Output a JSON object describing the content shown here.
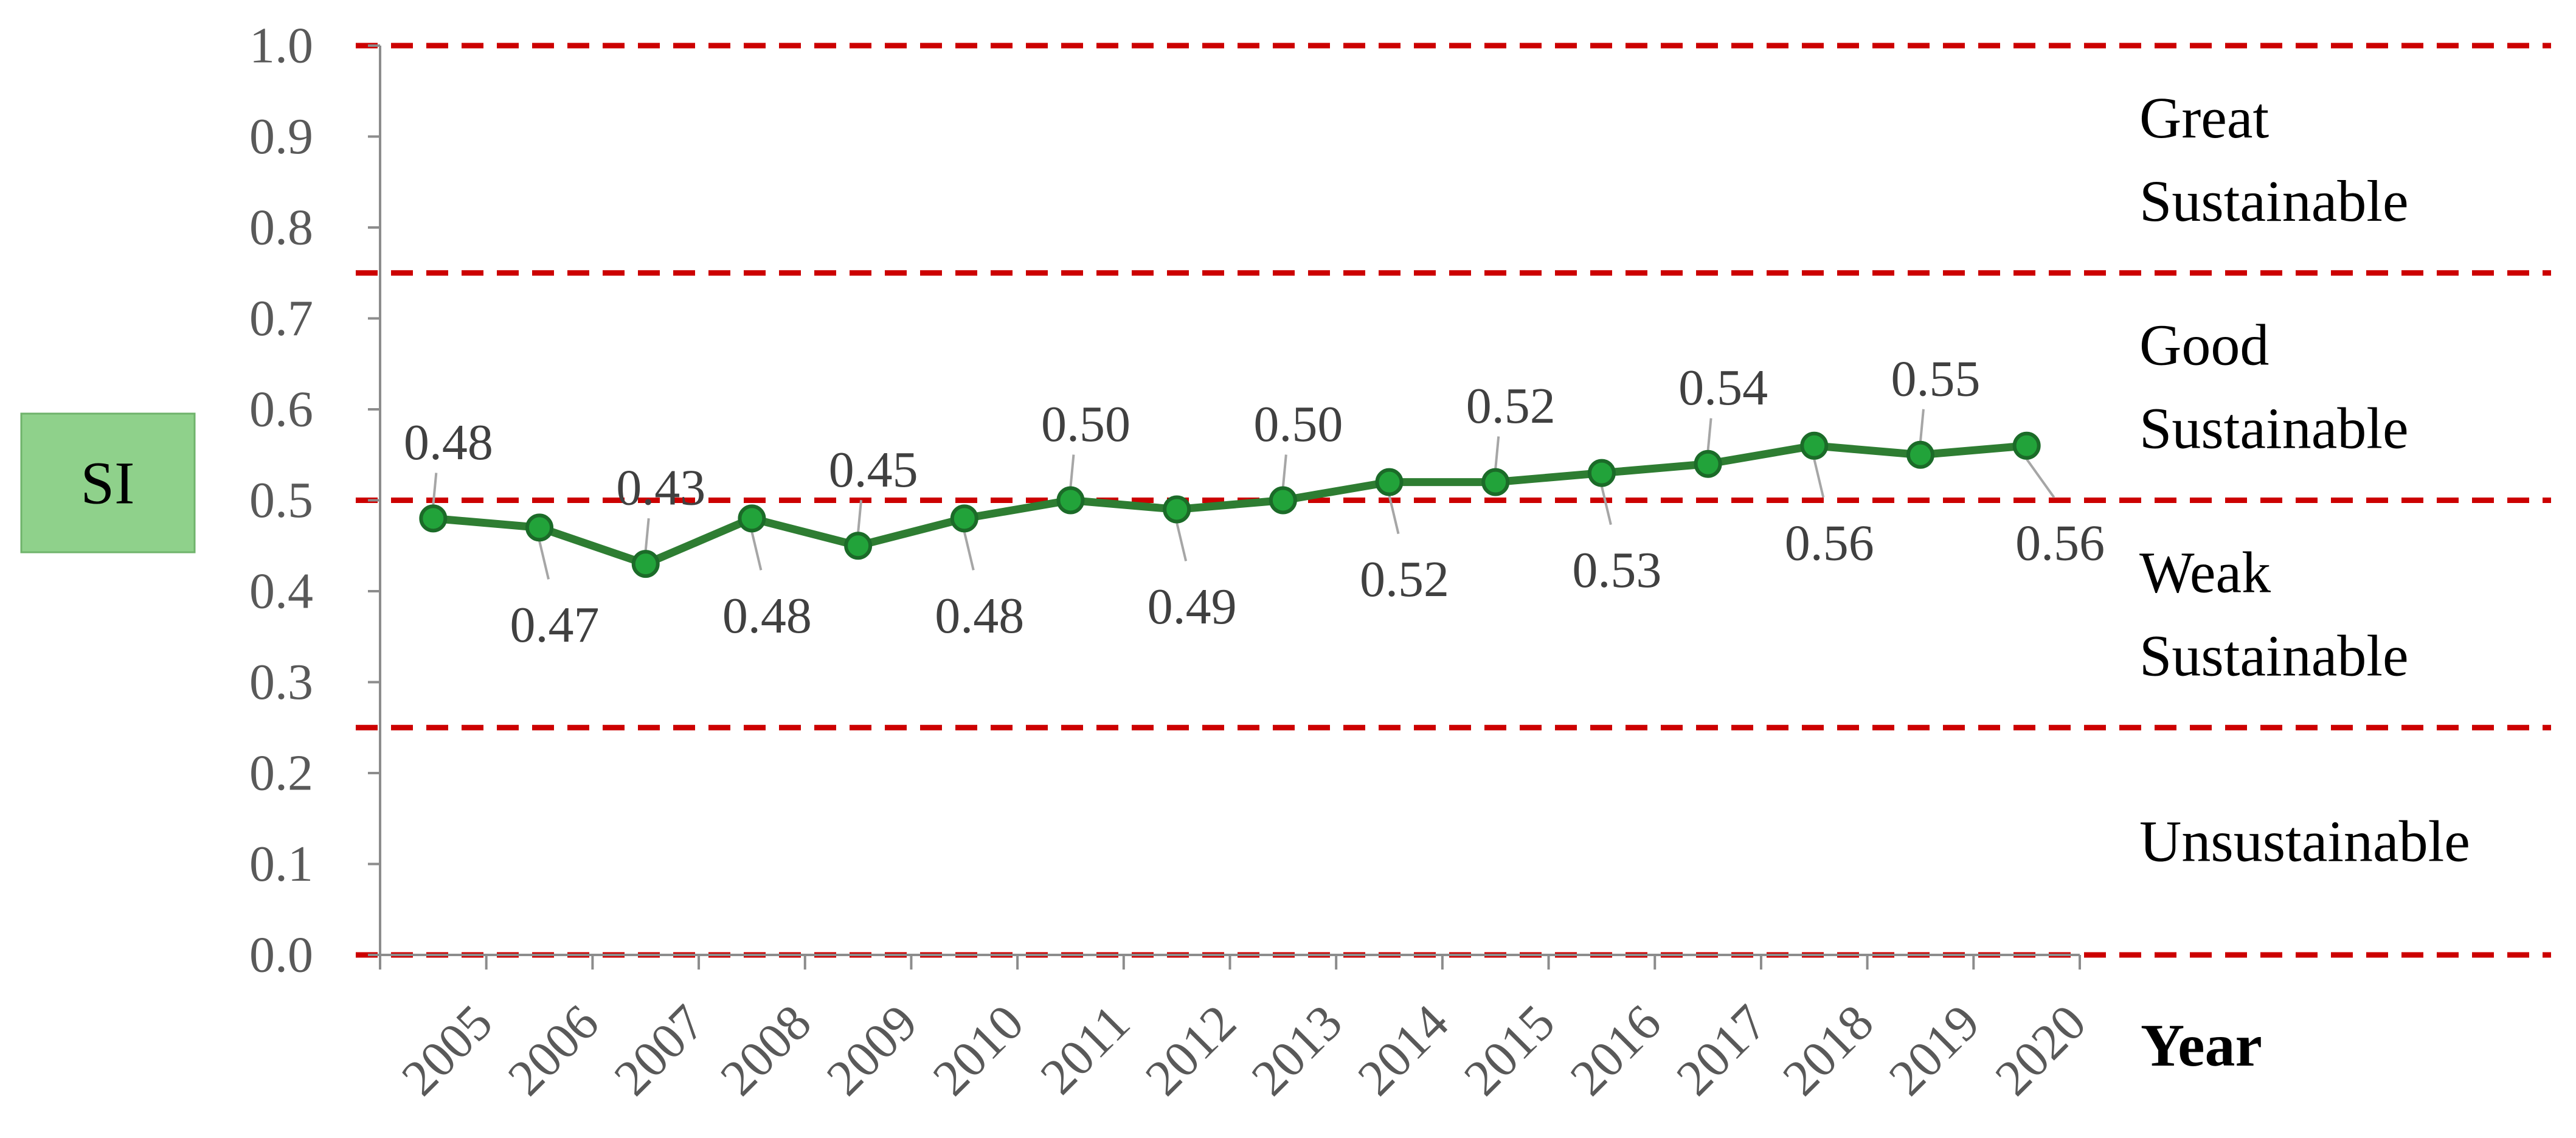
{
  "chart_data": {
    "type": "line",
    "x": [
      "2005",
      "2006",
      "2007",
      "2008",
      "2009",
      "2010",
      "2011",
      "2012",
      "2013",
      "2014",
      "2015",
      "2016",
      "2017",
      "2018",
      "2019",
      "2020"
    ],
    "series": [
      {
        "values": [
          0.48,
          0.47,
          0.43,
          0.48,
          0.45,
          0.48,
          0.5,
          0.49,
          0.5,
          0.52,
          0.52,
          0.53,
          0.54,
          0.56,
          0.55,
          0.56
        ],
        "data_labels": [
          "0.48",
          "0.47",
          "0.43",
          "0.48",
          "0.45",
          "0.48",
          "0.50",
          "0.49",
          "0.50",
          "0.52",
          "0.52",
          "0.53",
          "0.54",
          "0.56",
          "0.55",
          "0.56"
        ],
        "color": "#2e7d32"
      }
    ],
    "xlabel": "Year",
    "ylabel": "SI",
    "ylim": [
      0.0,
      1.0
    ],
    "yticks": [
      "0.0",
      "0.1",
      "0.2",
      "0.3",
      "0.4",
      "0.5",
      "0.6",
      "0.7",
      "0.8",
      "0.9",
      "1.0"
    ],
    "grid": false,
    "thresholds": [
      0.0,
      0.25,
      0.5,
      0.75,
      1.0
    ],
    "threshold_color": "#cc0000",
    "zones": [
      {
        "lines": [
          "Great",
          "Sustainable"
        ],
        "from": 0.75,
        "to": 1.0
      },
      {
        "lines": [
          "Good",
          "Sustainable"
        ],
        "from": 0.5,
        "to": 0.75
      },
      {
        "lines": [
          "Weak",
          "Sustainable"
        ],
        "from": 0.25,
        "to": 0.5
      },
      {
        "lines": [
          "Unsustainable"
        ],
        "from": 0.0,
        "to": 0.25
      }
    ],
    "ylabel_box_color": "#8fd18b"
  }
}
